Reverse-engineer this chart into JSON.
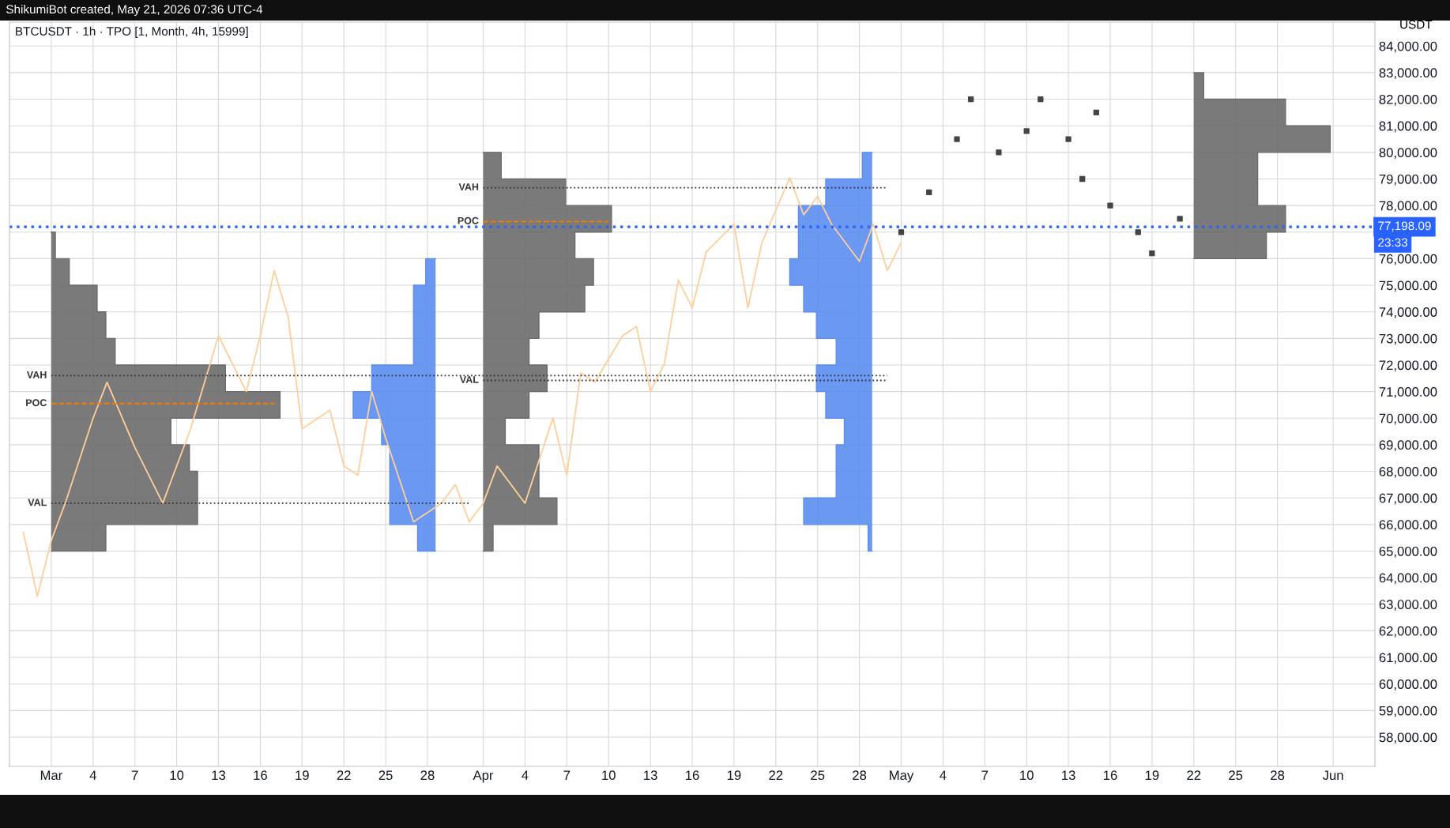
{
  "chart_data": {
    "type": "line",
    "title": "BTCUSDT · 1h · TPO [1, Month, 4h, 15999]",
    "ylabel": "USDT",
    "annotations": [
      "ShikumiBot created, May 21, 2026 07:36 UTC-4",
      "23:33",
      {
        "text": "VAH",
        "x": "2026-03-01",
        "y": 71600
      },
      {
        "text": "POC",
        "x": "2026-03-01",
        "y": 70550
      },
      {
        "text": "VAL",
        "x": "2026-03-01",
        "y": 66800
      },
      {
        "text": "VAH",
        "x": "2026-04-01",
        "y": 78670
      },
      {
        "text": "POC",
        "x": "2026-04-01",
        "y": 77400
      },
      {
        "text": "VAL",
        "x": "2026-04-01",
        "y": 71420
      }
    ],
    "xlim": [
      "2026-02-26",
      "2026-06-04"
    ],
    "ylim": [
      56900,
      84900
    ],
    "xticks": [
      {
        "value": "2026-03-01",
        "label": "Mar"
      },
      {
        "value": "2026-03-04",
        "label": "4"
      },
      {
        "value": "2026-03-07",
        "label": "7"
      },
      {
        "value": "2026-03-10",
        "label": "10"
      },
      {
        "value": "2026-03-13",
        "label": "13"
      },
      {
        "value": "2026-03-16",
        "label": "16"
      },
      {
        "value": "2026-03-19",
        "label": "19"
      },
      {
        "value": "2026-03-22",
        "label": "22"
      },
      {
        "value": "2026-03-25",
        "label": "25"
      },
      {
        "value": "2026-03-28",
        "label": "28"
      },
      {
        "value": "2026-04-01",
        "label": "Apr"
      },
      {
        "value": "2026-04-04",
        "label": "4"
      },
      {
        "value": "2026-04-07",
        "label": "7"
      },
      {
        "value": "2026-04-10",
        "label": "10"
      },
      {
        "value": "2026-04-13",
        "label": "13"
      },
      {
        "value": "2026-04-16",
        "label": "16"
      },
      {
        "value": "2026-04-19",
        "label": "19"
      },
      {
        "value": "2026-04-22",
        "label": "22"
      },
      {
        "value": "2026-04-25",
        "label": "25"
      },
      {
        "value": "2026-04-28",
        "label": "28"
      },
      {
        "value": "2026-05-01",
        "label": "May"
      },
      {
        "value": "2026-05-04",
        "label": "4"
      },
      {
        "value": "2026-05-07",
        "label": "7"
      },
      {
        "value": "2026-05-10",
        "label": "10"
      },
      {
        "value": "2026-05-13",
        "label": "13"
      },
      {
        "value": "2026-05-16",
        "label": "16"
      },
      {
        "value": "2026-05-19",
        "label": "19"
      },
      {
        "value": "2026-05-22",
        "label": "22"
      },
      {
        "value": "2026-05-25",
        "label": "25"
      },
      {
        "value": "2026-05-28",
        "label": "28"
      },
      {
        "value": "2026-06-01",
        "label": "Jun"
      }
    ],
    "yticks": [
      {
        "value": 58000,
        "label": "58,000.00"
      },
      {
        "value": 59000,
        "label": "59,000.00"
      },
      {
        "value": 60000,
        "label": "60,000.00"
      },
      {
        "value": 61000,
        "label": "61,000.00"
      },
      {
        "value": 62000,
        "label": "62,000.00"
      },
      {
        "value": 63000,
        "label": "63,000.00"
      },
      {
        "value": 64000,
        "label": "64,000.00"
      },
      {
        "value": 65000,
        "label": "65,000.00"
      },
      {
        "value": 66000,
        "label": "66,000.00"
      },
      {
        "value": 67000,
        "label": "67,000.00"
      },
      {
        "value": 68000,
        "label": "68,000.00"
      },
      {
        "value": 69000,
        "label": "69,000.00"
      },
      {
        "value": 70000,
        "label": "70,000.00"
      },
      {
        "value": 71000,
        "label": "71,000.00"
      },
      {
        "value": 72000,
        "label": "72,000.00"
      },
      {
        "value": 73000,
        "label": "73,000.00"
      },
      {
        "value": 74000,
        "label": "74,000.00"
      },
      {
        "value": 75000,
        "label": "75,000.00"
      },
      {
        "value": 76000,
        "label": "76,000.00"
      },
      {
        "value": 77000,
        "label": null
      },
      {
        "value": 78000,
        "label": "78,000.00"
      },
      {
        "value": 79000,
        "label": "79,000.00"
      },
      {
        "value": 80000,
        "label": "80,000.00"
      },
      {
        "value": 81000,
        "label": "81,000.00"
      },
      {
        "value": 82000,
        "label": "82,000.00"
      },
      {
        "value": 83000,
        "label": "83,000.00"
      },
      {
        "value": 84000,
        "label": "84,000.00"
      }
    ],
    "grid": true,
    "ref_lines": [
      {
        "axis": "y",
        "value": 77198.09,
        "label": "77,198.09",
        "color": "#2962ff",
        "line_style": "dotted"
      }
    ],
    "series": [
      {
        "type": "area",
        "color": "#6b6b6b",
        "x": [
          "2026-03-01",
          "2026-03-04T22:00",
          "2026-03-11T12:00",
          "2026-03-11T12:00",
          "2026-03-10T22:00",
          "2026-03-09T14:00",
          "2026-03-17T10:00",
          "2026-03-13T12:00",
          "2026-03-05T14:00",
          "2026-03-04T22:00",
          "2026-03-04T07:00",
          "2026-03-02T07:00",
          "2026-03-01T07:00",
          "2026-03-01"
        ],
        "values": [
          65000,
          65500,
          66500,
          67500,
          68500,
          69500,
          70500,
          71500,
          72500,
          73500,
          74500,
          75500,
          76500,
          77000
        ]
      },
      {
        "type": "area",
        "color": "#5b8def",
        "x": [
          "2026-03-28T14:00",
          "2026-03-27T07:00",
          "2026-03-25T07:00",
          "2026-03-25T07:00",
          "2026-03-25T07:00",
          "2026-03-24T17:00",
          "2026-03-22T16:00",
          "2026-03-24T00:00",
          "2026-03-27T00:00",
          "2026-03-27T00:00",
          "2026-03-27T00:00",
          "2026-03-27T21:00",
          "2026-03-28T14:00"
        ],
        "values": [
          65000,
          65500,
          66500,
          67500,
          68500,
          69500,
          70500,
          71500,
          72500,
          73500,
          74500,
          75500,
          76000
        ]
      },
      {
        "type": "area",
        "color": "#6b6b6b",
        "x": [
          "2026-04-01",
          "2026-04-01T17:00",
          "2026-04-06T07:00",
          "2026-04-05T00:00",
          "2026-04-05T00:00",
          "2026-04-02T14:00",
          "2026-04-04T07:00",
          "2026-04-05T14:00",
          "2026-04-04T07:00",
          "2026-04-05T00:00",
          "2026-04-08T07:00",
          "2026-04-08T22:00",
          "2026-04-07T14:00",
          "2026-04-10T05:00",
          "2026-04-06T22:00",
          "2026-04-02T07:00",
          "2026-04-01"
        ],
        "values": [
          65000,
          65500,
          66500,
          67500,
          68500,
          69500,
          70500,
          71500,
          72500,
          73500,
          74500,
          75500,
          76500,
          77500,
          78500,
          79500,
          80000
        ]
      },
      {
        "type": "area",
        "color": "#5b8def",
        "x": [
          "2026-04-28T22:00",
          "2026-04-28T15:00",
          "2026-04-24T00:00",
          "2026-04-26T08:00",
          "2026-04-26T08:00",
          "2026-04-26T22:00",
          "2026-04-25T14:00",
          "2026-04-24T22:00",
          "2026-04-26T08:00",
          "2026-04-24T22:00",
          "2026-04-24T00:00",
          "2026-04-23T00:00",
          "2026-04-23T15:00",
          "2026-04-23T15:00",
          "2026-04-25T14:00",
          "2026-04-28T05:00",
          "2026-04-28T22:00"
        ],
        "values": [
          65000,
          65500,
          66500,
          67500,
          68500,
          69500,
          70500,
          71500,
          72500,
          73500,
          74500,
          75500,
          76500,
          77500,
          78500,
          79500,
          80000
        ]
      },
      {
        "type": "area",
        "color": "#6b6b6b",
        "x": [
          "2026-05-22",
          "2026-05-27T05:00",
          "2026-05-28T14:00",
          "2026-05-26T14:00",
          "2026-05-26T14:00",
          "2026-05-31T19:00",
          "2026-05-28T14:00",
          "2026-05-22T17:00",
          "2026-05-22"
        ],
        "values": [
          76000,
          76500,
          77500,
          78500,
          79500,
          80500,
          81500,
          82500,
          83000
        ]
      },
      {
        "color": "#ffcf99",
        "x": [
          "2026-02-27",
          "2026-02-28",
          "2026-03-01",
          "2026-03-02",
          "2026-03-04",
          "2026-03-05",
          "2026-03-07",
          "2026-03-09",
          "2026-03-11",
          "2026-03-13",
          "2026-03-15",
          "2026-03-16",
          "2026-03-17",
          "2026-03-18",
          "2026-03-19",
          "2026-03-21",
          "2026-03-22",
          "2026-03-23",
          "2026-03-24",
          "2026-03-25",
          "2026-03-27",
          "2026-03-28",
          "2026-03-29",
          "2026-03-30",
          "2026-03-31",
          "2026-04-01",
          "2026-04-02",
          "2026-04-04",
          "2026-04-06",
          "2026-04-07",
          "2026-04-08",
          "2026-04-09",
          "2026-04-11",
          "2026-04-12",
          "2026-04-13",
          "2026-04-14",
          "2026-04-15",
          "2026-04-16",
          "2026-04-17",
          "2026-04-19",
          "2026-04-20",
          "2026-04-21",
          "2026-04-23",
          "2026-04-24",
          "2026-04-25",
          "2026-04-26",
          "2026-04-28",
          "2026-04-29",
          "2026-04-30",
          "2026-05-01"
        ],
        "values": [
          65700,
          63300,
          65400,
          66800,
          70000,
          71350,
          68900,
          66800,
          69600,
          73100,
          71000,
          73100,
          75550,
          73800,
          69600,
          70300,
          68200,
          67850,
          71000,
          69250,
          66100,
          66450,
          66800,
          67500,
          66100,
          66800,
          68200,
          66800,
          70000,
          67850,
          71700,
          71350,
          73100,
          73450,
          71000,
          72050,
          75200,
          74150,
          76250,
          77300,
          74150,
          76600,
          79050,
          77650,
          78350,
          77300,
          75900,
          77300,
          75550,
          76600
        ]
      },
      {
        "type": "scatter",
        "color": "#444444",
        "marker": "square",
        "x": [
          "2026-05-01",
          "2026-05-03",
          "2026-05-05",
          "2026-05-06",
          "2026-05-08",
          "2026-05-10",
          "2026-05-11",
          "2026-05-13",
          "2026-05-14",
          "2026-05-15",
          "2026-05-16",
          "2026-05-18",
          "2026-05-19",
          "2026-05-21"
        ],
        "values": [
          77000,
          78500,
          80500,
          82000,
          80000,
          80800,
          82000,
          80500,
          79000,
          81500,
          78000,
          77000,
          76200,
          77500
        ]
      },
      {
        "type": "line",
        "color": "#333333",
        "line_style": "dotted",
        "x": [
          "2026-03-01",
          "2026-04-30"
        ],
        "values": [
          71600,
          71600
        ]
      },
      {
        "type": "line",
        "color": "#f57c00",
        "line_style": "dashed",
        "x": [
          "2026-03-01",
          "2026-03-17"
        ],
        "values": [
          70550,
          70550
        ]
      },
      {
        "type": "line",
        "color": "#333333",
        "line_style": "dotted",
        "x": [
          "2026-03-01",
          "2026-03-31"
        ],
        "values": [
          66800,
          66800
        ]
      },
      {
        "type": "line",
        "color": "#333333",
        "line_style": "dotted",
        "x": [
          "2026-04-01",
          "2026-04-30"
        ],
        "values": [
          78670,
          78670
        ]
      },
      {
        "type": "line",
        "color": "#f57c00",
        "line_style": "dashed",
        "x": [
          "2026-04-01",
          "2026-04-10"
        ],
        "values": [
          77400,
          77400
        ]
      },
      {
        "type": "line",
        "color": "#333333",
        "line_style": "dotted",
        "x": [
          "2026-04-01",
          "2026-04-30"
        ],
        "values": [
          71420,
          71420
        ]
      }
    ]
  }
}
